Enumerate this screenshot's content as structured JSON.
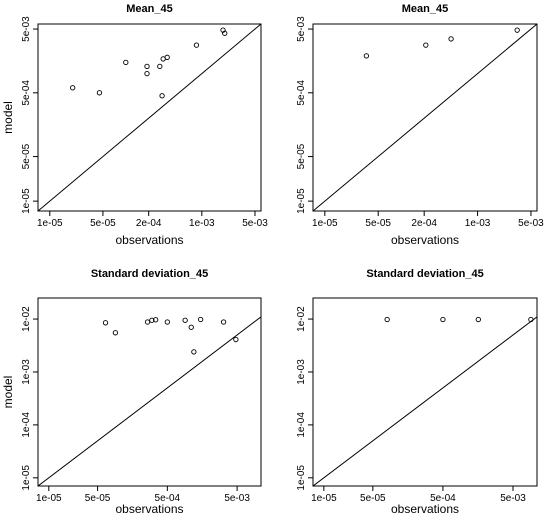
{
  "chart_data": [
    {
      "type": "scatter",
      "title": "Mean_45",
      "xlabel": "observations",
      "ylabel": "model",
      "scale": "log",
      "xlim": [
        7e-06,
        0.006
      ],
      "ylim": [
        7e-06,
        0.006
      ],
      "xticks": [
        1e-05,
        5e-05,
        0.0002,
        0.001,
        0.005
      ],
      "xtick_labels": [
        "1e-05",
        "5e-05",
        "2e-04",
        "1e-03",
        "5e-03"
      ],
      "yticks": [
        1e-05,
        5e-05,
        0.0005,
        0.005
      ],
      "ytick_labels": [
        "1e-05",
        "5e-05",
        "5e-04",
        "5e-03"
      ],
      "reference_line": "y = x",
      "grid": false,
      "points": [
        {
          "x": 2e-05,
          "y": 0.0006
        },
        {
          "x": 4.5e-05,
          "y": 0.0005
        },
        {
          "x": 0.0001,
          "y": 0.0015
        },
        {
          "x": 0.00019,
          "y": 0.0013
        },
        {
          "x": 0.00019,
          "y": 0.001
        },
        {
          "x": 0.00028,
          "y": 0.0013
        },
        {
          "x": 0.0003,
          "y": 0.00045
        },
        {
          "x": 0.00031,
          "y": 0.0017
        },
        {
          "x": 0.00035,
          "y": 0.0018
        },
        {
          "x": 0.00085,
          "y": 0.0028
        },
        {
          "x": 0.0019,
          "y": 0.0048
        },
        {
          "x": 0.002,
          "y": 0.0043
        }
      ]
    },
    {
      "type": "scatter",
      "title": "Mean_45",
      "xlabel": "observations",
      "ylabel": "",
      "scale": "log",
      "xlim": [
        7e-06,
        0.006
      ],
      "ylim": [
        7e-06,
        0.006
      ],
      "xticks": [
        1e-05,
        5e-05,
        0.0002,
        0.001,
        0.005
      ],
      "xtick_labels": [
        "1e-05",
        "5e-05",
        "2e-04",
        "1e-03",
        "5e-03"
      ],
      "yticks": [
        1e-05,
        5e-05,
        0.0005,
        0.005
      ],
      "ytick_labels": [
        "1e-05",
        "5e-05",
        "5e-04",
        "5e-03"
      ],
      "reference_line": "y = x",
      "grid": false,
      "points": [
        {
          "x": 3.5e-05,
          "y": 0.0019
        },
        {
          "x": 0.00021,
          "y": 0.0028
        },
        {
          "x": 0.00045,
          "y": 0.0035
        },
        {
          "x": 0.0033,
          "y": 0.0048
        }
      ]
    },
    {
      "type": "scatter",
      "title": "Standard deviation_45",
      "xlabel": "observations",
      "ylabel": "model",
      "scale": "log",
      "xlim": [
        7e-06,
        0.011
      ],
      "ylim": [
        7e-06,
        0.025
      ],
      "xticks": [
        1e-05,
        5e-05,
        0.0005,
        0.005
      ],
      "xtick_labels": [
        "1e-05",
        "5e-05",
        "5e-04",
        "5e-03"
      ],
      "yticks": [
        1e-05,
        0.0001,
        0.001,
        0.01
      ],
      "ytick_labels": [
        "1e-05",
        "1e-04",
        "1e-03",
        "1e-02"
      ],
      "reference_line": "y = x",
      "grid": false,
      "points": [
        {
          "x": 6.5e-05,
          "y": 0.0085
        },
        {
          "x": 9e-05,
          "y": 0.0055
        },
        {
          "x": 0.00026,
          "y": 0.0088
        },
        {
          "x": 0.0003,
          "y": 0.0095
        },
        {
          "x": 0.00034,
          "y": 0.0097
        },
        {
          "x": 0.0005,
          "y": 0.0088
        },
        {
          "x": 0.0009,
          "y": 0.0095
        },
        {
          "x": 0.0011,
          "y": 0.007
        },
        {
          "x": 0.0012,
          "y": 0.0024
        },
        {
          "x": 0.0015,
          "y": 0.0098
        },
        {
          "x": 0.0032,
          "y": 0.0088
        },
        {
          "x": 0.0048,
          "y": 0.0041
        }
      ]
    },
    {
      "type": "scatter",
      "title": "Standard deviation_45",
      "xlabel": "observations",
      "ylabel": "",
      "scale": "log",
      "xlim": [
        7e-06,
        0.011
      ],
      "ylim": [
        7e-06,
        0.025
      ],
      "xticks": [
        1e-05,
        5e-05,
        0.0005,
        0.005
      ],
      "xtick_labels": [
        "1e-05",
        "5e-05",
        "5e-04",
        "5e-03"
      ],
      "yticks": [
        1e-05,
        0.0001,
        0.001,
        0.01
      ],
      "ytick_labels": [
        "1e-05",
        "1e-04",
        "1e-03",
        "1e-02"
      ],
      "reference_line": "y = x",
      "grid": false,
      "points": [
        {
          "x": 8e-05,
          "y": 0.0098
        },
        {
          "x": 0.0005,
          "y": 0.0098
        },
        {
          "x": 0.0016,
          "y": 0.0098
        },
        {
          "x": 0.009,
          "y": 0.0098
        }
      ]
    }
  ]
}
